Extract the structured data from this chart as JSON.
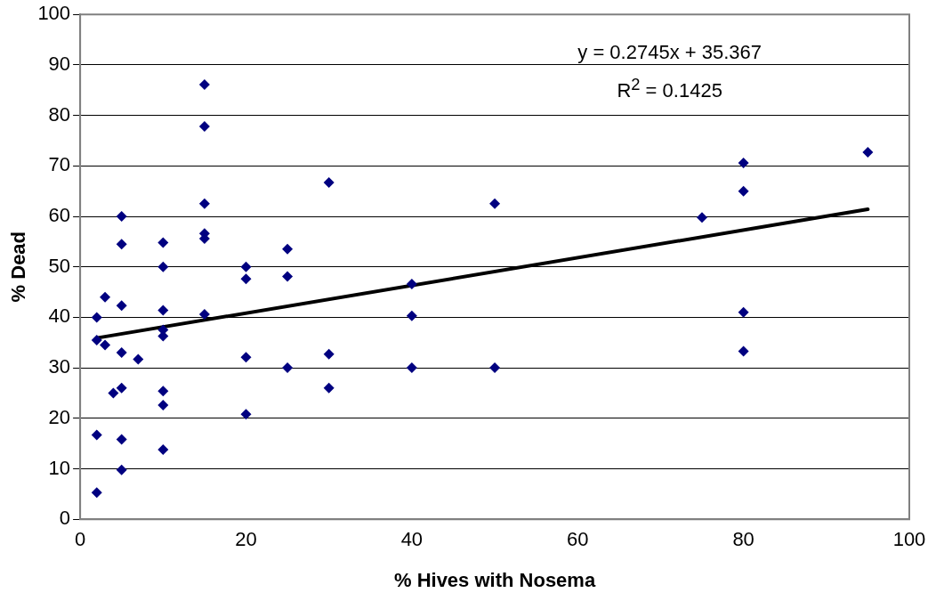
{
  "chart_data": {
    "type": "scatter",
    "xlabel": "% Hives with Nosema",
    "ylabel": "% Dead",
    "series": [
      {
        "type": "scatter",
        "color": "#000080",
        "x": [
          2,
          2,
          2,
          2,
          3,
          3,
          4,
          5,
          5,
          5,
          5,
          5,
          5,
          5,
          7,
          10,
          10,
          10,
          10,
          10,
          10,
          10,
          10,
          15,
          15,
          15,
          15,
          15,
          15,
          20,
          20,
          20,
          20,
          25,
          25,
          25,
          30,
          30,
          30,
          40,
          40,
          40,
          50,
          50,
          75,
          80,
          80,
          80,
          80,
          95
        ],
        "values": [
          40,
          35.5,
          16.7,
          5.3,
          44,
          34.5,
          25,
          60,
          54.5,
          42.3,
          33,
          26,
          15.8,
          9.8,
          31.7,
          54.8,
          50,
          41.4,
          37.5,
          36.3,
          25.4,
          22.6,
          13.8,
          86.1,
          77.8,
          62.5,
          56.6,
          55.6,
          40.6,
          50,
          47.6,
          32.1,
          20.8,
          53.5,
          48.1,
          30,
          66.7,
          32.7,
          26,
          46.6,
          40.3,
          30,
          62.5,
          30,
          59.8,
          70.6,
          65,
          41,
          33.3,
          72.7
        ]
      },
      {
        "type": "line",
        "marker": "none",
        "color": "#000000",
        "x": [
          2,
          95
        ],
        "values": [
          35.9,
          61.4
        ]
      }
    ],
    "annotations": [
      "y = 0.2745x + 35.367",
      "R$^{2}$ = 0.1425"
    ],
    "xlim": [
      0,
      100
    ],
    "xticks": [
      0,
      20,
      40,
      60,
      80,
      100
    ],
    "ylim": [
      0,
      100
    ],
    "yticks": [
      0,
      10,
      20,
      30,
      40,
      50,
      60,
      70,
      80,
      90,
      100
    ],
    "grid": "y",
    "legend": false,
    "marker": "diamond"
  }
}
